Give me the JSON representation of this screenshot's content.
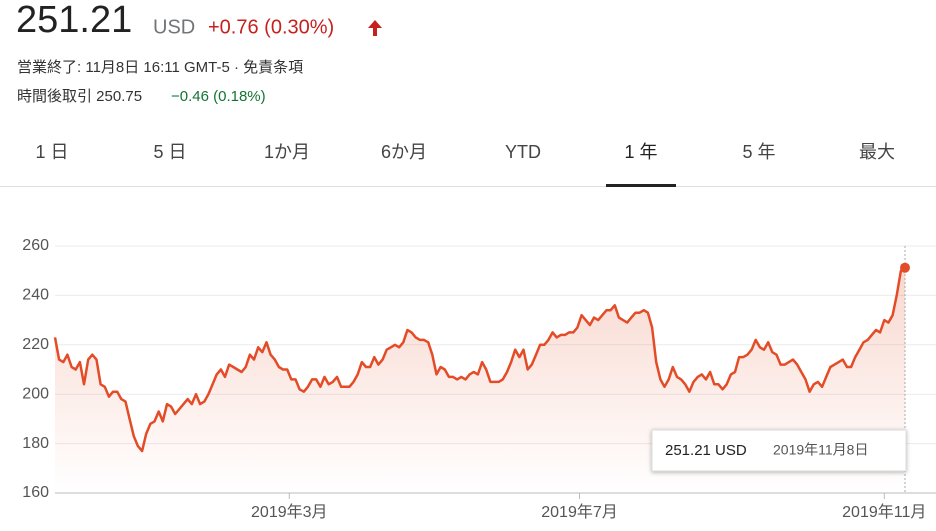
{
  "quote": {
    "price": "251.21",
    "currency": "USD",
    "change": "+0.76 (0.30%)",
    "status": "営業終了: 11月8日 16:11 GMT-5 · 免責条項",
    "after_hours_label": "時間後取引 250.75",
    "after_hours_change": "−0.46 (0.18%)"
  },
  "tabs": [
    "1 日",
    "5 日",
    "1か月",
    "6か月",
    "YTD",
    "1 年",
    "5 年",
    "最大"
  ],
  "selected_tab": "1 年",
  "chart_data": {
    "type": "line",
    "color": "#e34c26",
    "grid": true,
    "values": [
      223,
      214,
      213,
      216,
      211,
      210,
      213,
      204,
      214,
      216,
      214,
      204,
      203,
      199,
      201,
      201,
      198,
      197,
      190,
      183,
      179,
      177,
      184,
      188,
      189,
      193,
      189,
      196,
      195,
      192,
      194,
      196,
      198,
      196,
      200,
      196,
      197,
      200,
      204,
      208,
      210,
      207,
      212,
      211,
      210,
      209,
      211,
      216,
      214,
      219,
      217,
      221,
      216,
      214,
      211,
      210,
      210,
      206,
      206,
      202,
      201,
      203,
      206,
      206,
      203,
      207,
      204,
      205,
      207,
      203,
      203,
      203,
      205,
      208,
      213,
      211,
      211,
      215,
      212,
      214,
      218,
      219,
      220,
      219,
      221,
      226,
      225,
      223,
      222,
      222,
      221,
      216,
      208,
      211,
      210,
      207,
      207,
      206,
      207,
      206,
      208,
      209,
      208,
      213,
      210,
      205,
      205,
      205,
      206,
      209,
      213,
      218,
      215,
      218,
      210,
      212,
      216,
      220,
      220,
      222,
      225,
      223,
      224,
      224,
      225,
      225,
      227,
      232,
      230,
      228,
      231,
      230,
      232,
      234,
      234,
      236,
      231,
      230,
      229,
      231,
      233,
      233,
      234,
      233,
      227,
      213,
      206,
      203,
      206,
      211,
      207,
      206,
      204,
      201,
      205,
      207,
      208,
      206,
      209,
      204,
      204,
      202,
      204,
      208,
      209,
      215,
      215,
      216,
      218,
      222,
      219,
      218,
      221,
      217,
      216,
      212,
      212,
      213,
      214,
      212,
      209,
      206,
      201,
      204,
      205,
      203,
      207,
      211,
      212,
      213,
      214,
      211,
      211,
      215,
      218,
      221,
      222,
      224,
      226,
      225,
      230,
      229,
      232,
      240,
      250,
      251.21
    ],
    "xlim": [
      0,
      205
    ],
    "xticks": [
      {
        "value": 56.5,
        "label": "2019年3月"
      },
      {
        "value": 126.5,
        "label": "2019年7月"
      },
      {
        "value": 200,
        "label": "2019年11月"
      }
    ],
    "ylim": [
      160,
      260
    ],
    "yticks": [
      160,
      180,
      200,
      220,
      240,
      260
    ],
    "tooltip": {
      "value": "251.21 USD",
      "date": "2019年11月8日"
    }
  }
}
